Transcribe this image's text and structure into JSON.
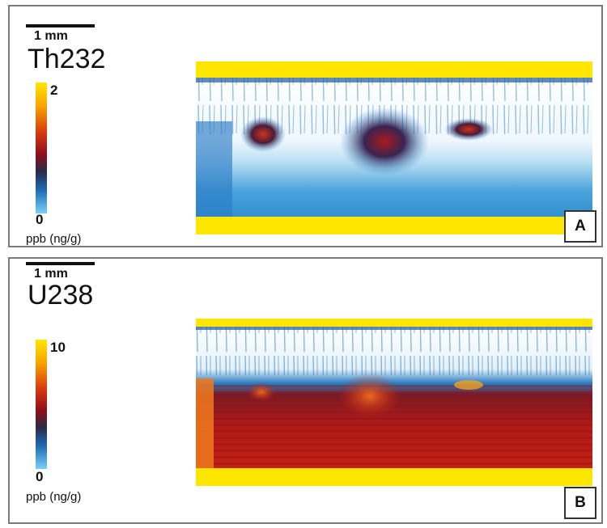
{
  "panels": [
    {
      "id": "A",
      "scale_label": "1 mm",
      "element": "Th232",
      "colorbar_max": "2",
      "colorbar_min": "0",
      "units": "ppb (ng/g)",
      "panel_label": "A"
    },
    {
      "id": "B",
      "scale_label": "1 mm",
      "element": "U238",
      "colorbar_max": "10",
      "colorbar_min": "0",
      "units": "ppb (ng/g)",
      "panel_label": "B"
    }
  ],
  "colors": {
    "coating_yellow": "#ffe600",
    "high_red": "#b3141c",
    "mid_blue": "#1e7bc4",
    "low_blue": "#8fd3f3"
  }
}
